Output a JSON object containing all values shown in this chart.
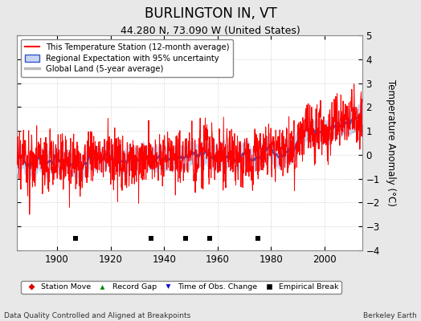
{
  "title": "BURLINGTON IN, VT",
  "subtitle": "44.280 N, 73.090 W (United States)",
  "ylabel": "Temperature Anomaly (°C)",
  "footer_left": "Data Quality Controlled and Aligned at Breakpoints",
  "footer_right": "Berkeley Earth",
  "xlim": [
    1885,
    2014
  ],
  "ylim": [
    -4,
    5
  ],
  "yticks": [
    -4,
    -3,
    -2,
    -1,
    0,
    1,
    2,
    3,
    4,
    5
  ],
  "xticks": [
    1900,
    1920,
    1940,
    1960,
    1980,
    2000
  ],
  "year_start": 1885,
  "year_end": 2013,
  "background_color": "#e8e8e8",
  "plot_bg_color": "#ffffff",
  "grid_color": "#cccccc",
  "empirical_breaks": [
    1907,
    1935,
    1948,
    1957,
    1975
  ],
  "legend_entries": [
    {
      "label": "This Temperature Station (12-month average)",
      "color": "#ff0000",
      "lw": 1.5
    },
    {
      "label": "Regional Expectation with 95% uncertainty",
      "color": "#4444ff",
      "lw": 1.5
    },
    {
      "label": "Global Land (5-year average)",
      "color": "#bbbbbb",
      "lw": 2
    }
  ],
  "marker_legend": [
    {
      "label": "Station Move",
      "marker": "D",
      "color": "#ff0000"
    },
    {
      "label": "Record Gap",
      "marker": "^",
      "color": "#00aa00"
    },
    {
      "label": "Time of Obs. Change",
      "marker": "v",
      "color": "#0000ff"
    },
    {
      "label": "Empirical Break",
      "marker": "s",
      "color": "#000000"
    }
  ]
}
